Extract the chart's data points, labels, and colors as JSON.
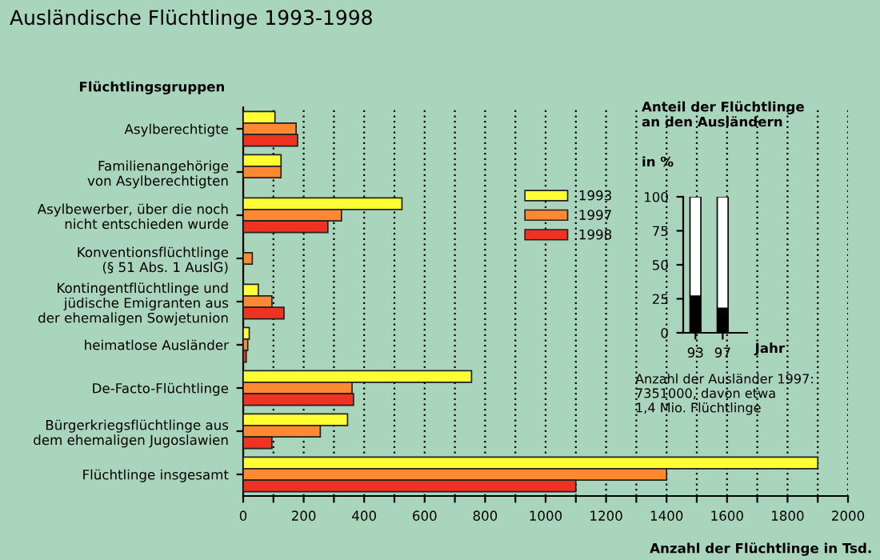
{
  "chart_data": [
    {
      "type": "bar",
      "orientation": "horizontal",
      "title": "Ausländische Flüchtlinge 1993-1998",
      "ylabel": "Flüchtlingsgruppen",
      "xlabel": "Anzahl der Flüchtlinge in Tsd.",
      "categories": [
        "Asylberechtigte",
        "Familienangehörige\nvon Asylberechtigten",
        "Asylbewerber, über die noch\nnicht entschieden wurde",
        "Konventionsflüchtlinge\n(§ 51 Abs. 1 AuslG)",
        "Kontingentflüchtlinge und\njüdische Emigranten aus\nder ehemaligen Sowjetunion",
        "heimatlose Ausländer",
        "De-Facto-Flüchtlinge",
        "Bürgerkriegsflüchtlinge aus\ndem ehemaligen Jugoslawien",
        "Flüchtlinge insgesamt"
      ],
      "series": [
        {
          "name": "1993",
          "color": "#ffff33",
          "values": [
            105,
            125,
            525,
            null,
            50,
            20,
            755,
            345,
            1900
          ]
        },
        {
          "name": "1997",
          "color": "#ff8833",
          "values": [
            175,
            125,
            325,
            30,
            95,
            15,
            360,
            255,
            1400
          ]
        },
        {
          "name": "1998",
          "color": "#ee3322",
          "values": [
            180,
            null,
            280,
            null,
            135,
            10,
            365,
            95,
            1100
          ]
        }
      ],
      "xlim": [
        0,
        2000
      ],
      "xticks": [
        0,
        {
          "value": 100,
          "label": null
        },
        200,
        {
          "value": 300,
          "label": null
        },
        400,
        {
          "value": 500,
          "label": null
        },
        600,
        {
          "value": 700,
          "label": null
        },
        800,
        {
          "value": 900,
          "label": null
        },
        1000,
        {
          "value": 1100,
          "label": null
        },
        1200,
        {
          "value": 1300,
          "label": null
        },
        1400,
        {
          "value": 1500,
          "label": null
        },
        1600,
        {
          "value": 1700,
          "label": null
        },
        1800,
        {
          "value": 1900,
          "label": null
        },
        2000
      ],
      "grid": "x",
      "legend": "right"
    },
    {
      "type": "bar",
      "stacked": true,
      "title": "Anteil der Flüchtlinge\nan den Ausländern",
      "ylabel": "in %",
      "xlabel": "Jahr",
      "categories": [
        "93",
        "97"
      ],
      "series": [
        {
          "color": "#000000",
          "values": [
            27,
            18
          ]
        },
        {
          "color": "#ffffff",
          "values": [
            73,
            82
          ]
        }
      ],
      "ylim": [
        0,
        100
      ],
      "yticks": [
        0,
        25,
        50,
        75,
        100
      ],
      "annotations": [
        "Anzahl der Ausländer 1997:\n7351000, davon etwa\n1,4 Mio. Flüchtlinge"
      ]
    }
  ]
}
